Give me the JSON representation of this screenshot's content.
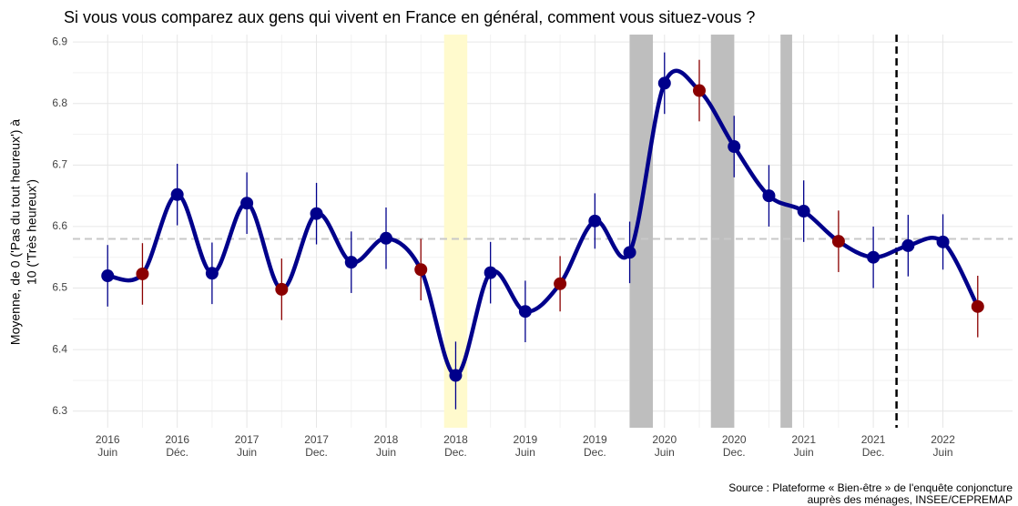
{
  "chart_data": {
    "type": "line",
    "title": "Si vous vous comparez aux gens qui vivent en France en général, comment vous situez-vous ?",
    "y_label": [
      "Moyenne, de 0 ('Pas du tout heureux') à",
      "10 ('Très heureux')"
    ],
    "source": [
      "Source : Plateforme « Bien-être » de l'enquête conjoncture",
      "auprès des ménages, INSEE/CEPREMAP"
    ],
    "x": [
      "2016-06",
      "2016-09",
      "2016-12",
      "2017-03",
      "2017-06",
      "2017-09",
      "2017-12",
      "2018-03",
      "2018-06",
      "2018-09",
      "2018-12",
      "2019-03",
      "2019-06",
      "2019-09",
      "2019-12",
      "2020-03",
      "2020-06",
      "2020-09",
      "2020-12",
      "2021-03",
      "2021-06",
      "2021-09",
      "2021-12",
      "2022-03",
      "2022-06",
      "2022-09"
    ],
    "series": [
      {
        "color": "#00008b",
        "values": [
          6.52,
          6.523,
          6.652,
          6.524,
          6.638,
          6.498,
          6.621,
          6.542,
          6.581,
          6.53,
          6.358,
          6.525,
          6.462,
          6.507,
          6.609,
          6.558,
          6.833,
          6.821,
          6.73,
          6.65,
          6.625,
          6.576,
          6.55,
          6.569,
          6.575,
          6.47
        ],
        "errors": [
          0.05,
          0.05,
          0.05,
          0.05,
          0.05,
          0.05,
          0.05,
          0.05,
          0.05,
          0.05,
          0.055,
          0.05,
          0.05,
          0.045,
          0.045,
          0.05,
          0.05,
          0.05,
          0.05,
          0.05,
          0.05,
          0.05,
          0.05,
          0.05,
          0.045,
          0.05
        ],
        "point_colors": [
          "#00008b",
          "#8b0000",
          "#00008b",
          "#00008b",
          "#00008b",
          "#8b0000",
          "#00008b",
          "#00008b",
          "#00008b",
          "#8b0000",
          "#00008b",
          "#00008b",
          "#00008b",
          "#8b0000",
          "#00008b",
          "#00008b",
          "#00008b",
          "#8b0000",
          "#00008b",
          "#00008b",
          "#00008b",
          "#8b0000",
          "#00008b",
          "#00008b",
          "#00008b",
          "#8b0000"
        ]
      }
    ],
    "xlim": [
      "2016-03",
      "2022-12"
    ],
    "xticks": [
      {
        "value": "2016-06",
        "label": [
          "2016",
          "Juin"
        ]
      },
      {
        "value": "2016-12",
        "label": [
          "2016",
          "Déc."
        ]
      },
      {
        "value": "2017-06",
        "label": [
          "2017",
          "Juin"
        ]
      },
      {
        "value": "2017-12",
        "label": [
          "2017",
          "Dec."
        ]
      },
      {
        "value": "2018-06",
        "label": [
          "2018",
          "Juin"
        ]
      },
      {
        "value": "2018-12",
        "label": [
          "2018",
          "Dec."
        ]
      },
      {
        "value": "2019-06",
        "label": [
          "2019",
          "Juin"
        ]
      },
      {
        "value": "2019-12",
        "label": [
          "2019",
          "Dec."
        ]
      },
      {
        "value": "2020-06",
        "label": [
          "2020",
          "Juin"
        ]
      },
      {
        "value": "2020-12",
        "label": [
          "2020",
          "Dec."
        ]
      },
      {
        "value": "2021-06",
        "label": [
          "2021",
          "Juin"
        ]
      },
      {
        "value": "2021-12",
        "label": [
          "2021",
          "Dec."
        ]
      },
      {
        "value": "2022-06",
        "label": [
          "2022",
          "Juin"
        ]
      }
    ],
    "ylim": [
      6.273,
      6.912
    ],
    "yticks": [
      6.3,
      6.4,
      6.5,
      6.6,
      6.7,
      6.8,
      6.9
    ],
    "grid": true,
    "reference_line": 6.58,
    "vertical_line": "2022-02",
    "bands": [
      {
        "start": "2018-11",
        "end": "2019-01",
        "color": "#fffacd"
      },
      {
        "start": "2020-03",
        "end": "2020-05",
        "color": "#bebebe"
      },
      {
        "start": "2020-10",
        "end": "2020-12",
        "color": "#bebebe"
      },
      {
        "start": "2021-04",
        "end": "2021-05",
        "color": "#bebebe"
      }
    ]
  }
}
